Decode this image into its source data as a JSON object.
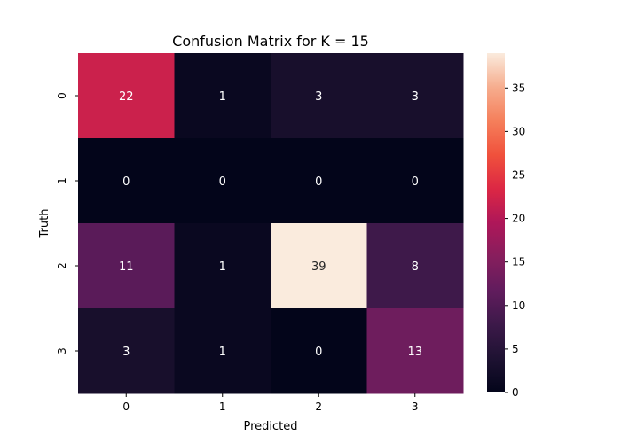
{
  "chart_data": {
    "type": "heatmap",
    "title": "Confusion Matrix for K = 15",
    "xlabel": "Predicted",
    "ylabel": "Truth",
    "x_categories": [
      "0",
      "1",
      "2",
      "3"
    ],
    "y_categories": [
      "0",
      "1",
      "2",
      "3"
    ],
    "values": [
      [
        22,
        1,
        3,
        3
      ],
      [
        0,
        0,
        0,
        0
      ],
      [
        11,
        1,
        39,
        8
      ],
      [
        3,
        1,
        0,
        13
      ]
    ],
    "colorbar": {
      "range": [
        0,
        39
      ],
      "ticks": [
        0,
        5,
        10,
        15,
        20,
        25,
        30,
        35
      ]
    },
    "colormap": "rocket",
    "annotation_colors": {
      "light": "#ffffff",
      "dark": "#262626"
    }
  }
}
